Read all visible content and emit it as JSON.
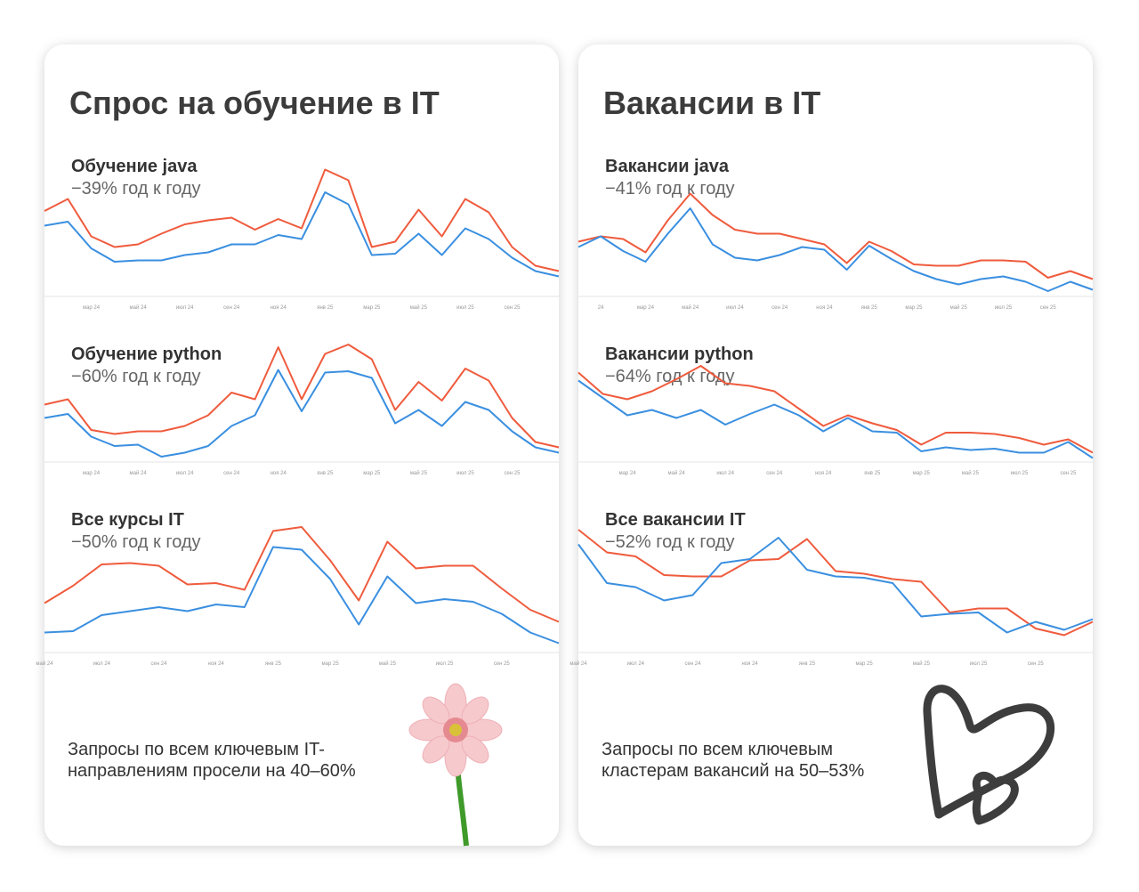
{
  "cards": [
    {
      "title": "Спрос на обучение в IT",
      "note_lines": [
        "Запросы по всем ключевым IT-",
        "направлениям просели на 40–60%"
      ]
    },
    {
      "title": "Вакансии в IT",
      "note_lines": [
        "Запросы по всем ключевым",
        "кластерам вакансий на 50–53%"
      ]
    }
  ],
  "chart_data": [
    {
      "type": "line",
      "title": "Обучение java",
      "subtitle": "−39% год к году",
      "ylim": [
        0,
        100
      ],
      "categories": [
        null,
        null,
        "мар 24",
        null,
        "май 24",
        null,
        "июл 24",
        null,
        "сен 24",
        null,
        "ноя 24",
        null,
        "янв 25",
        null,
        "мар 25",
        null,
        "май 25",
        null,
        "июл 25",
        null,
        "сен 25",
        null,
        null
      ],
      "series": [
        {
          "color": "#ef5b3d",
          "values": [
            64,
            73,
            45,
            37,
            39,
            47,
            54,
            57,
            59,
            50,
            58,
            51,
            95,
            87,
            37,
            41,
            65,
            45,
            73,
            63,
            37,
            23,
            19
          ]
        },
        {
          "color": "#3a8fe0",
          "values": [
            53,
            56,
            36,
            26,
            27,
            27,
            31,
            33,
            39,
            39,
            46,
            43,
            78,
            69,
            31,
            32,
            47,
            31,
            51,
            43,
            29,
            19,
            15
          ]
        }
      ]
    },
    {
      "type": "line",
      "title": "Обучение python",
      "subtitle": "−60% год к году",
      "ylim": [
        0,
        100
      ],
      "categories": [
        null,
        null,
        "мар 24",
        null,
        "май 24",
        null,
        "июл 24",
        null,
        "сен 24",
        null,
        "ноя 24",
        null,
        "янв 25",
        null,
        "мар 25",
        null,
        "май 25",
        null,
        "июл 25",
        null,
        "сен 25",
        null,
        null
      ],
      "series": [
        {
          "color": "#ef5b3d",
          "values": [
            43,
            47,
            24,
            21,
            23,
            23,
            27,
            35,
            52,
            47,
            86,
            47,
            81,
            88,
            77,
            39,
            60,
            46,
            70,
            61,
            33,
            15,
            11
          ]
        },
        {
          "color": "#3a8fe0",
          "values": [
            33,
            36,
            19,
            12,
            13,
            4,
            7,
            12,
            27,
            35,
            69,
            38,
            67,
            68,
            63,
            29,
            39,
            27,
            45,
            39,
            23,
            11,
            7
          ]
        }
      ]
    },
    {
      "type": "line",
      "title": "Все курсы IT",
      "subtitle": "−50% год к году",
      "ylim": [
        0,
        100
      ],
      "categories": [
        "май 24",
        null,
        "июл 24",
        null,
        "сен 24",
        null,
        "ноя 24",
        null,
        "янв 25",
        null,
        "мар 25",
        null,
        "май 25",
        null,
        "июл 25",
        null,
        "сен 25",
        null,
        null
      ],
      "series": [
        {
          "color": "#ef5b3d",
          "values": [
            37,
            50,
            66,
            67,
            65,
            51,
            52,
            47,
            91,
            94,
            69,
            39,
            83,
            63,
            65,
            65,
            48,
            32,
            23
          ]
        },
        {
          "color": "#3a8fe0",
          "values": [
            15,
            16,
            28,
            31,
            34,
            31,
            36,
            34,
            79,
            77,
            55,
            21,
            57,
            37,
            40,
            38,
            29,
            15,
            7
          ]
        }
      ]
    },
    {
      "type": "line",
      "title": "Вакансии java",
      "subtitle": "−41% год к году",
      "ylim": [
        0,
        100
      ],
      "categories": [
        null,
        "24",
        null,
        "мар 24",
        null,
        "май 24",
        null,
        "июл 24",
        null,
        "сен 24",
        null,
        "ноя 24",
        null,
        "янв 25",
        null,
        "мар 25",
        null,
        "май 25",
        null,
        "июл 25",
        null,
        "сен 25",
        null,
        null
      ],
      "series": [
        {
          "color": "#ef5b3d",
          "values": [
            41,
            45,
            43,
            33,
            57,
            77,
            61,
            50,
            47,
            47,
            43,
            39,
            25,
            41,
            34,
            24,
            23,
            23,
            27,
            27,
            26,
            14,
            19,
            13
          ]
        },
        {
          "color": "#3a8fe0",
          "values": [
            37,
            45,
            34,
            26,
            47,
            66,
            39,
            29,
            27,
            31,
            37,
            35,
            20,
            38,
            28,
            19,
            13,
            9,
            13,
            15,
            11,
            4,
            11,
            5
          ]
        }
      ]
    },
    {
      "type": "line",
      "title": "Вакансии python",
      "subtitle": "−64% год к году",
      "ylim": [
        0,
        100
      ],
      "categories": [
        null,
        null,
        "мар 24",
        null,
        "май 24",
        null,
        "июл 24",
        null,
        "сен 24",
        null,
        "ноя 24",
        null,
        "янв 25",
        null,
        "мар 25",
        null,
        "май 25",
        null,
        "июл 25",
        null,
        "сен 25",
        null
      ],
      "series": [
        {
          "color": "#ef5b3d",
          "values": [
            67,
            51,
            47,
            53,
            62,
            72,
            59,
            57,
            53,
            40,
            27,
            35,
            29,
            24,
            13,
            22,
            22,
            21,
            18,
            13,
            17,
            7
          ]
        },
        {
          "color": "#3a8fe0",
          "values": [
            61,
            48,
            35,
            39,
            33,
            39,
            28,
            36,
            43,
            35,
            23,
            33,
            23,
            22,
            8,
            11,
            9,
            10,
            7,
            7,
            15,
            3
          ]
        }
      ]
    },
    {
      "type": "line",
      "title": "Все вакансии IT",
      "subtitle": "−52% год к году",
      "ylim": [
        0,
        100
      ],
      "categories": [
        "май 24",
        null,
        "июл 24",
        null,
        "сен 24",
        null,
        "ноя 24",
        null,
        "янв 25",
        null,
        "мар 25",
        null,
        "май 25",
        null,
        "июл 25",
        null,
        "сен 25",
        null,
        null
      ],
      "series": [
        {
          "color": "#ef5b3d",
          "values": [
            92,
            75,
            72,
            58,
            57,
            57,
            69,
            70,
            85,
            61,
            59,
            55,
            53,
            30,
            33,
            33,
            18,
            13,
            23
          ]
        },
        {
          "color": "#3a8fe0",
          "values": [
            81,
            52,
            49,
            39,
            43,
            67,
            70,
            86,
            62,
            57,
            56,
            52,
            27,
            29,
            30,
            15,
            23,
            17,
            25
          ]
        }
      ]
    }
  ]
}
